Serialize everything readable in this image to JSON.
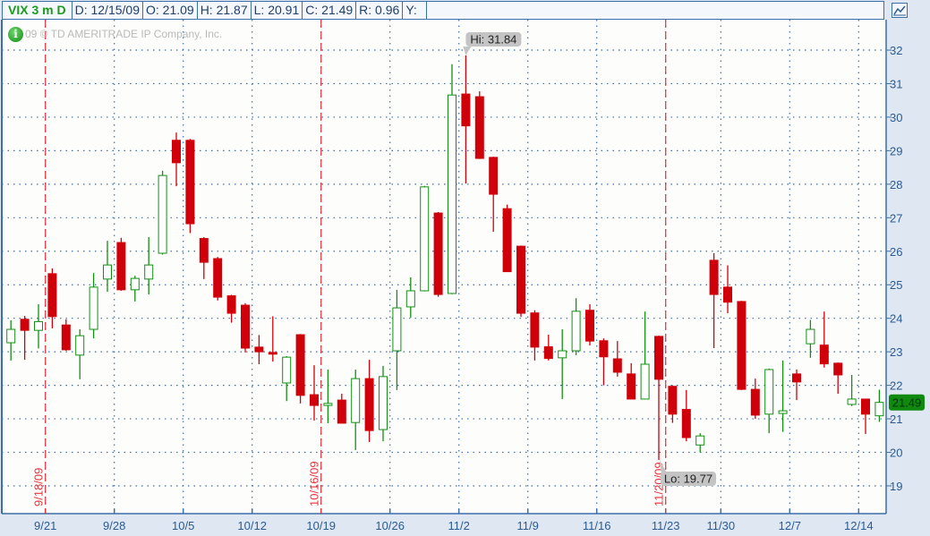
{
  "header": {
    "symbol": "VIX 3 m D",
    "date": "D: 12/15/09",
    "open": "O: 21.09",
    "high": "H: 21.87",
    "low": "L: 20.91",
    "close": "C: 21.49",
    "range": "R: 0.96",
    "y": "Y:"
  },
  "copyright": "09 © TD AMERITRADE IP Company, Inc.",
  "icons": {
    "info": "info-icon",
    "chart_settings": "chart-settings-icon"
  },
  "colors": {
    "up": "#129012",
    "down": "#d0000a",
    "grid": "#3b6fa8",
    "marker": "#e8323c",
    "last_price_bg": "#0f8a0f"
  },
  "chart_data": {
    "type": "candlestick",
    "symbol": "VIX",
    "ylim": [
      18.5,
      32.6
    ],
    "yticks": [
      19,
      20,
      21,
      22,
      23,
      24,
      25,
      26,
      27,
      28,
      29,
      30,
      31,
      32
    ],
    "xticks": [
      "9/21",
      "9/28",
      "10/5",
      "10/12",
      "10/19",
      "10/26",
      "11/2",
      "11/9",
      "11/16",
      "11/23",
      "11/30",
      "12/7",
      "12/14"
    ],
    "grid": true,
    "markers": [
      {
        "date": "9/18",
        "label": "9/18/09"
      },
      {
        "date": "10/16",
        "label": "10/16/09"
      },
      {
        "date": "11/20",
        "label": "11/20/09"
      }
    ],
    "hi_label": {
      "date": "11/2",
      "text": "Hi: 31.84",
      "value": 31.84
    },
    "lo_label": {
      "date": "11/20",
      "text": "Lo: 19.77",
      "value": 19.77
    },
    "last_price": {
      "text": "21.49",
      "value": 21.49
    },
    "candles": [
      [
        "9/16",
        23.27,
        23.94,
        22.74,
        23.67
      ],
      [
        "9/17",
        23.97,
        24.07,
        22.76,
        23.64
      ],
      [
        "9/18",
        23.64,
        24.42,
        23.1,
        23.9
      ],
      [
        "9/21",
        25.33,
        25.49,
        23.7,
        24.05
      ],
      [
        "9/22",
        23.8,
        23.97,
        23.03,
        23.06
      ],
      [
        "9/23",
        22.9,
        23.67,
        22.18,
        23.48
      ],
      [
        "9/24",
        23.67,
        25.35,
        23.4,
        24.93
      ],
      [
        "9/25",
        25.17,
        26.31,
        24.79,
        25.59
      ],
      [
        "9/28",
        26.26,
        26.4,
        24.82,
        24.85
      ],
      [
        "9/29",
        24.85,
        25.27,
        24.5,
        25.19
      ],
      [
        "9/30",
        25.17,
        26.42,
        24.71,
        25.59
      ],
      [
        "10/1",
        25.94,
        28.4,
        25.9,
        28.26
      ],
      [
        "10/2",
        29.31,
        29.54,
        27.94,
        28.64
      ],
      [
        "10/5",
        29.31,
        29.35,
        26.54,
        26.82
      ],
      [
        "10/6",
        26.38,
        26.42,
        25.17,
        25.67
      ],
      [
        "10/7",
        25.78,
        25.83,
        24.53,
        24.63
      ],
      [
        "10/8",
        24.67,
        24.7,
        23.87,
        24.15
      ],
      [
        "10/9",
        24.39,
        24.45,
        22.98,
        23.11
      ],
      [
        "10/12",
        23.14,
        23.5,
        22.63,
        23.0
      ],
      [
        "10/13",
        22.98,
        24.06,
        22.71,
        22.93
      ],
      [
        "10/14",
        22.07,
        22.87,
        21.53,
        22.84
      ],
      [
        "10/15",
        23.51,
        23.53,
        21.46,
        21.7
      ],
      [
        "10/16",
        21.72,
        22.6,
        20.95,
        21.4
      ],
      [
        "10/19",
        21.4,
        22.47,
        20.87,
        21.46
      ],
      [
        "10/20",
        21.56,
        21.75,
        20.87,
        20.87
      ],
      [
        "10/21",
        20.89,
        22.47,
        20.07,
        22.2
      ],
      [
        "10/22",
        22.2,
        22.76,
        20.31,
        20.65
      ],
      [
        "10/23",
        20.68,
        22.58,
        20.33,
        22.26
      ],
      [
        "10/26",
        23.03,
        24.85,
        21.86,
        24.31
      ],
      [
        "10/27",
        24.34,
        25.22,
        24.02,
        24.82
      ],
      [
        "10/28",
        24.82,
        27.95,
        24.8,
        27.92
      ],
      [
        "10/29",
        27.14,
        27.17,
        24.64,
        24.71
      ],
      [
        "10/30",
        24.74,
        31.58,
        24.72,
        30.66
      ],
      [
        "11/2",
        30.69,
        31.84,
        28.02,
        29.74
      ],
      [
        "11/3",
        30.61,
        30.77,
        28.75,
        28.77
      ],
      [
        "11/4",
        28.8,
        28.82,
        26.58,
        27.7
      ],
      [
        "11/5",
        27.27,
        27.39,
        25.38,
        25.39
      ],
      [
        "11/6",
        26.15,
        26.17,
        24.04,
        24.15
      ],
      [
        "11/9",
        24.16,
        24.24,
        22.74,
        23.14
      ],
      [
        "11/10",
        23.15,
        23.51,
        22.74,
        22.8
      ],
      [
        "11/11",
        22.82,
        23.67,
        21.59,
        23.03
      ],
      [
        "11/12",
        23.03,
        24.6,
        22.9,
        24.21
      ],
      [
        "11/13",
        24.24,
        24.42,
        23.19,
        23.32
      ],
      [
        "11/16",
        23.33,
        23.4,
        22.0,
        22.85
      ],
      [
        "11/17",
        22.79,
        23.32,
        22.26,
        22.39
      ],
      [
        "11/18",
        22.34,
        22.66,
        21.59,
        21.59
      ],
      [
        "11/19",
        21.59,
        24.2,
        21.59,
        22.63
      ],
      [
        "11/20",
        23.46,
        23.48,
        19.77,
        22.18
      ],
      [
        "11/23",
        21.97,
        22.0,
        20.88,
        21.14
      ],
      [
        "11/24",
        21.28,
        21.86,
        20.33,
        20.44
      ],
      [
        "11/25",
        20.22,
        20.57,
        20.0,
        20.49
      ],
      [
        "11/27",
        25.73,
        25.94,
        23.11,
        24.71
      ],
      [
        "11/30",
        24.93,
        25.58,
        24.15,
        24.48
      ],
      [
        "12/1",
        24.5,
        24.52,
        21.86,
        21.88
      ],
      [
        "12/2",
        21.88,
        22.2,
        21.0,
        21.11
      ],
      [
        "12/3",
        21.14,
        22.5,
        20.57,
        22.47
      ],
      [
        "12/4",
        21.16,
        22.74,
        20.61,
        21.24
      ],
      [
        "12/7",
        22.34,
        22.47,
        21.56,
        22.1
      ],
      [
        "12/8",
        23.24,
        23.95,
        22.82,
        23.67
      ],
      [
        "12/9",
        23.2,
        24.2,
        22.53,
        22.64
      ],
      [
        "12/10",
        22.66,
        22.68,
        21.75,
        22.31
      ],
      [
        "12/11",
        21.43,
        22.31,
        21.38,
        21.59
      ],
      [
        "12/14",
        21.59,
        21.6,
        20.55,
        21.14
      ],
      [
        "12/15",
        21.09,
        21.87,
        20.91,
        21.49
      ]
    ]
  }
}
